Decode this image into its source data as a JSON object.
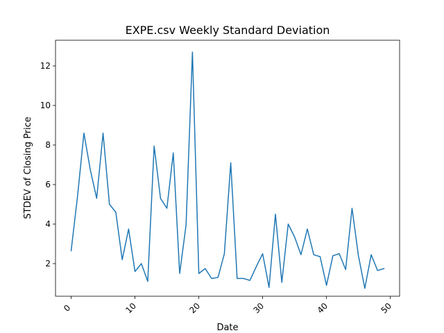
{
  "chart_data": {
    "type": "line",
    "title": "EXPE.csv Weekly Standard Deviation",
    "xlabel": "Date",
    "ylabel": "STDEV of Closing Price",
    "x": [
      0,
      1,
      2,
      3,
      4,
      5,
      6,
      7,
      8,
      9,
      10,
      11,
      12,
      13,
      14,
      15,
      16,
      17,
      18,
      19,
      20,
      21,
      22,
      23,
      24,
      25,
      26,
      27,
      28,
      29,
      30,
      31,
      32,
      33,
      34,
      35,
      36,
      37,
      38,
      39,
      40,
      41,
      42,
      43,
      44,
      45,
      46,
      47,
      48,
      49
    ],
    "series": [
      {
        "color": "#1f77b4",
        "values": [
          2.65,
          5.4,
          8.6,
          6.75,
          5.3,
          8.6,
          5.0,
          4.6,
          2.2,
          3.75,
          1.6,
          2.0,
          1.1,
          7.95,
          5.3,
          4.8,
          7.6,
          1.5,
          3.95,
          12.7,
          1.5,
          1.75,
          1.25,
          1.3,
          2.5,
          7.1,
          1.25,
          1.25,
          1.15,
          1.85,
          2.5,
          0.8,
          4.5,
          1.05,
          4.0,
          3.35,
          2.45,
          3.75,
          2.45,
          2.35,
          0.9,
          2.4,
          2.5,
          1.7,
          4.8,
          2.4,
          0.75,
          2.45,
          1.65,
          1.75
        ]
      }
    ],
    "xlim": [
      -2.45,
      51.45
    ],
    "ylim": [
      0.35,
      13.3
    ],
    "xticks": [
      0,
      10,
      20,
      30,
      40,
      50
    ],
    "yticks": [
      2,
      4,
      6,
      8,
      10,
      12
    ],
    "xtick_labels": [
      "0",
      "10",
      "20",
      "30",
      "40",
      "50"
    ],
    "ytick_labels": [
      "2",
      "4",
      "6",
      "8",
      "10",
      "12"
    ],
    "grid": false,
    "legend": false
  }
}
